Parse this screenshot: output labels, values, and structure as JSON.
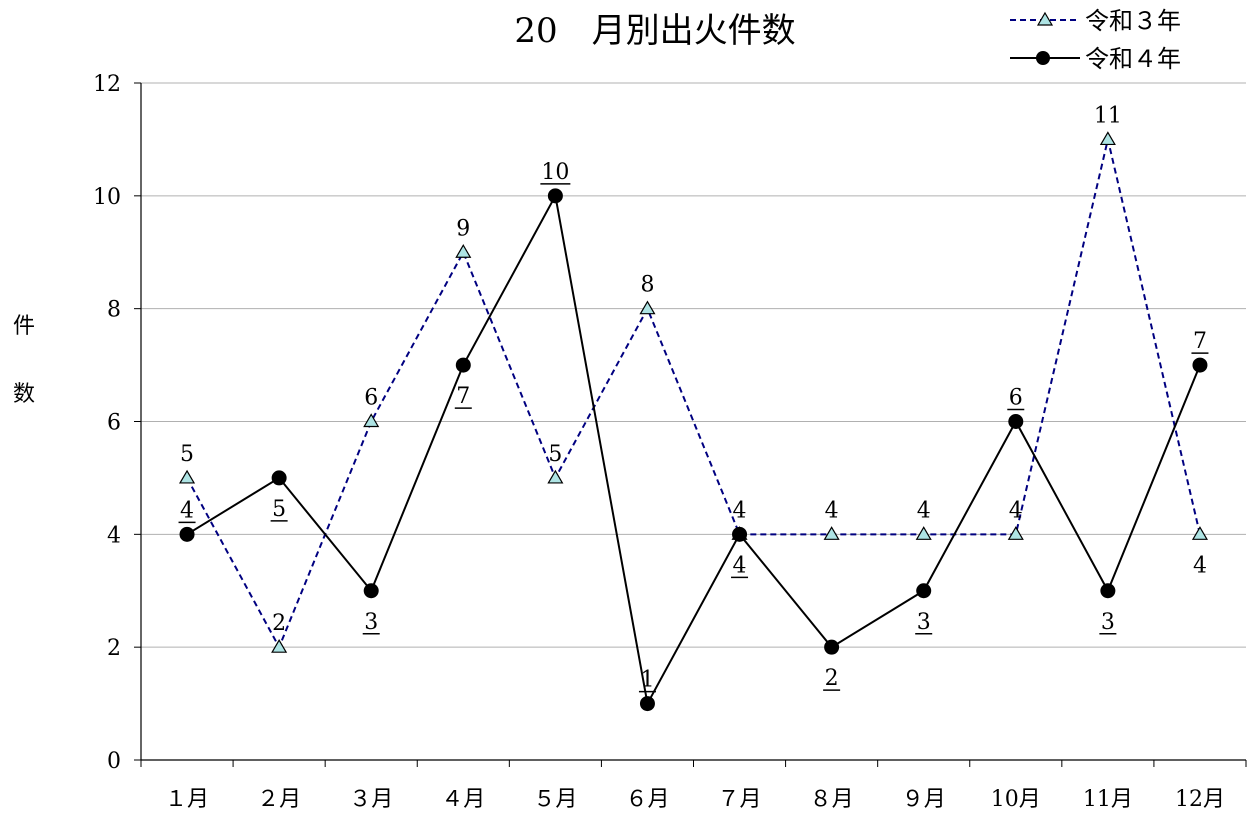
{
  "chart_data": {
    "type": "line",
    "title": "20　月別出火件数",
    "xlabel": "",
    "ylabel_chars": [
      "件",
      "数"
    ],
    "categories": [
      "１月",
      "２月",
      "３月",
      "４月",
      "５月",
      "６月",
      "７月",
      "８月",
      "９月",
      "10月",
      "11月",
      "12月"
    ],
    "ylim": [
      0,
      12
    ],
    "yticks": [
      0,
      2,
      4,
      6,
      8,
      10,
      12
    ],
    "grid": true,
    "legend_position": "top-right",
    "series": [
      {
        "name": "令和３年",
        "values": [
          5,
          2,
          6,
          9,
          5,
          8,
          4,
          4,
          4,
          4,
          11,
          4
        ],
        "color": "#000080",
        "marker_fill": "#aee4e4",
        "line_style": "dashed",
        "marker": "triangle"
      },
      {
        "name": "令和４年",
        "values": [
          4,
          5,
          3,
          7,
          10,
          1,
          4,
          2,
          3,
          6,
          3,
          7
        ],
        "color": "#000000",
        "marker_fill": "#000000",
        "line_style": "solid",
        "marker": "circle",
        "labels_underlined": true
      }
    ]
  }
}
